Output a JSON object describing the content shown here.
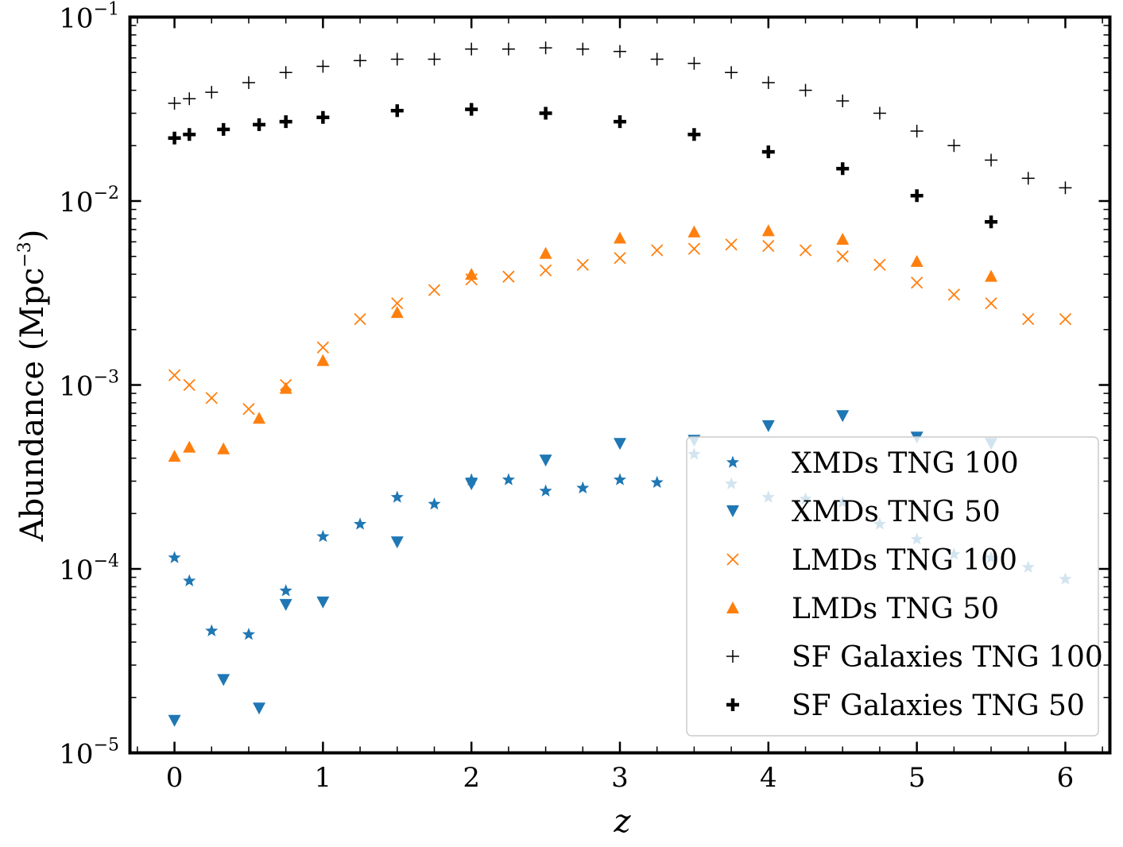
{
  "chart_data": {
    "type": "scatter",
    "xlabel": "z",
    "ylabel": "Abundance (Mpc",
    "ylabel_exp": "−3",
    "ylabel_close": ")",
    "yscale": "log",
    "xlim": [
      -0.3,
      6.3
    ],
    "ylim": [
      1e-05,
      0.1
    ],
    "x_ticks": [
      "0",
      "1",
      "2",
      "3",
      "4",
      "5",
      "6"
    ],
    "y_ticks": [
      {
        "base": "10",
        "exp": "−5",
        "value": 1e-05
      },
      {
        "base": "10",
        "exp": "−4",
        "value": 0.0001
      },
      {
        "base": "10",
        "exp": "−3",
        "value": 0.001
      },
      {
        "base": "10",
        "exp": "−2",
        "value": 0.01
      },
      {
        "base": "10",
        "exp": "−1",
        "value": 0.1
      }
    ],
    "legend_position": "lower-right",
    "series": [
      {
        "name": "XMDs TNG 100",
        "marker": "star",
        "color": "#1f77b4",
        "x": [
          0,
          0.1,
          0.25,
          0.5,
          0.75,
          1.0,
          1.25,
          1.5,
          1.75,
          2.0,
          2.25,
          2.5,
          2.75,
          3.0,
          3.25,
          3.5,
          3.75,
          4.0,
          4.25,
          4.5,
          4.75,
          5.0,
          5.25,
          5.5,
          5.75,
          6.0
        ],
        "y": [
          0.000115,
          8.6e-05,
          4.6e-05,
          4.4e-05,
          7.6e-05,
          0.00015,
          0.000175,
          0.000245,
          0.000225,
          0.000305,
          0.000305,
          0.000265,
          0.000275,
          0.000305,
          0.000295,
          0.00042,
          0.00029,
          0.000245,
          0.00024,
          0.00023,
          0.000175,
          0.000145,
          0.00012,
          0.000115,
          0.000102,
          8.8e-05
        ]
      },
      {
        "name": "XMDs TNG 50",
        "marker": "triangle-down",
        "color": "#1f77b4",
        "x": [
          0,
          0.33,
          0.57,
          0.75,
          1.0,
          1.5,
          2.0,
          2.5,
          3.0,
          3.5,
          4.0,
          4.5,
          5.0,
          5.5
        ],
        "y": [
          1.5e-05,
          2.5e-05,
          1.75e-05,
          6.4e-05,
          6.6e-05,
          0.00014,
          0.00029,
          0.00039,
          0.00048,
          0.0005,
          0.0006,
          0.00068,
          0.00052,
          0.00048
        ]
      },
      {
        "name": "LMDs TNG 100",
        "marker": "x",
        "color": "#ff7f0e",
        "x": [
          0,
          0.1,
          0.25,
          0.5,
          0.75,
          1.0,
          1.25,
          1.5,
          1.75,
          2.0,
          2.25,
          2.5,
          2.75,
          3.0,
          3.25,
          3.5,
          3.75,
          4.0,
          4.25,
          4.5,
          4.75,
          5.0,
          5.25,
          5.5,
          5.75,
          6.0
        ],
        "y": [
          0.00113,
          0.001,
          0.00085,
          0.00074,
          0.001,
          0.0016,
          0.00228,
          0.00278,
          0.00328,
          0.00375,
          0.00388,
          0.0042,
          0.0045,
          0.0049,
          0.0054,
          0.0055,
          0.0058,
          0.0057,
          0.0054,
          0.005,
          0.0045,
          0.0036,
          0.0031,
          0.00278,
          0.00228,
          0.00228
        ]
      },
      {
        "name": "LMDs TNG 50",
        "marker": "triangle-up",
        "color": "#ff7f0e",
        "x": [
          0,
          0.1,
          0.33,
          0.57,
          0.75,
          1.0,
          1.5,
          2.0,
          2.5,
          3.0,
          3.5,
          4.0,
          4.5,
          5.0,
          5.5
        ],
        "y": [
          0.00041,
          0.00046,
          0.00045,
          0.00066,
          0.00096,
          0.00136,
          0.00248,
          0.004,
          0.0052,
          0.0063,
          0.0068,
          0.0069,
          0.0062,
          0.0047,
          0.0039
        ]
      },
      {
        "name": "SF Galaxies TNG 100",
        "marker": "plus-thin",
        "color": "#000000",
        "x": [
          0,
          0.1,
          0.25,
          0.5,
          0.75,
          1.0,
          1.25,
          1.5,
          1.75,
          2.0,
          2.25,
          2.5,
          2.75,
          3.0,
          3.25,
          3.5,
          3.75,
          4.0,
          4.25,
          4.5,
          4.75,
          5.0,
          5.25,
          5.5,
          5.75,
          6.0
        ],
        "y": [
          0.034,
          0.036,
          0.039,
          0.044,
          0.05,
          0.054,
          0.058,
          0.059,
          0.059,
          0.067,
          0.067,
          0.068,
          0.067,
          0.065,
          0.059,
          0.056,
          0.05,
          0.044,
          0.04,
          0.035,
          0.03,
          0.024,
          0.02,
          0.0167,
          0.0133,
          0.0118
        ]
      },
      {
        "name": "SF Galaxies TNG 50",
        "marker": "plus-thick",
        "color": "#000000",
        "x": [
          0,
          0.1,
          0.33,
          0.57,
          0.75,
          1.0,
          1.5,
          2.0,
          2.5,
          3.0,
          3.5,
          4.0,
          4.5,
          5.0,
          5.5
        ],
        "y": [
          0.022,
          0.023,
          0.0245,
          0.026,
          0.027,
          0.0285,
          0.031,
          0.0315,
          0.03,
          0.027,
          0.023,
          0.0185,
          0.015,
          0.0107,
          0.0077
        ]
      }
    ]
  }
}
